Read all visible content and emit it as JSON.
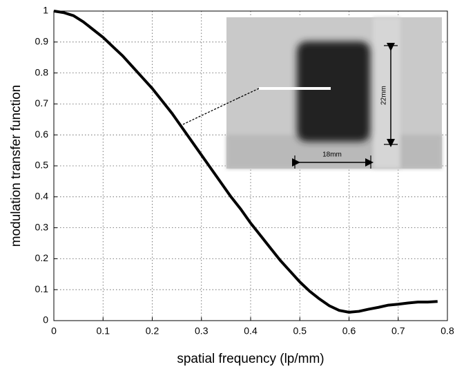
{
  "chart_data": {
    "type": "line",
    "x_label": "spatial frequency (lp/mm)",
    "y_label": "modulation transfer function",
    "x": [
      0,
      0.02,
      0.04,
      0.06,
      0.08,
      0.1,
      0.12,
      0.14,
      0.16,
      0.18,
      0.2,
      0.22,
      0.24,
      0.26,
      0.28,
      0.3,
      0.32,
      0.34,
      0.36,
      0.38,
      0.4,
      0.42,
      0.44,
      0.46,
      0.48,
      0.5,
      0.52,
      0.54,
      0.56,
      0.58,
      0.6,
      0.62,
      0.64,
      0.66,
      0.68,
      0.7,
      0.72,
      0.74,
      0.76,
      0.78
    ],
    "values": [
      1.0,
      0.995,
      0.985,
      0.965,
      0.94,
      0.915,
      0.885,
      0.855,
      0.82,
      0.785,
      0.75,
      0.71,
      0.67,
      0.625,
      0.58,
      0.535,
      0.49,
      0.445,
      0.4,
      0.36,
      0.315,
      0.275,
      0.235,
      0.195,
      0.16,
      0.125,
      0.095,
      0.07,
      0.048,
      0.033,
      0.027,
      0.03,
      0.037,
      0.043,
      0.05,
      0.053,
      0.057,
      0.06,
      0.06,
      0.062
    ],
    "color": "#000000",
    "xlim": [
      0,
      0.8
    ],
    "xticks": [
      0,
      0.1,
      0.2,
      0.3,
      0.4,
      0.5,
      0.6,
      0.7,
      0.8
    ],
    "ylim": [
      0,
      1
    ],
    "yticks": [
      0,
      0.1,
      0.2,
      0.3,
      0.4,
      0.5,
      0.6,
      0.7,
      0.8,
      0.9,
      1
    ],
    "grid": true,
    "annotations": [
      "22mm",
      "18mm"
    ]
  }
}
